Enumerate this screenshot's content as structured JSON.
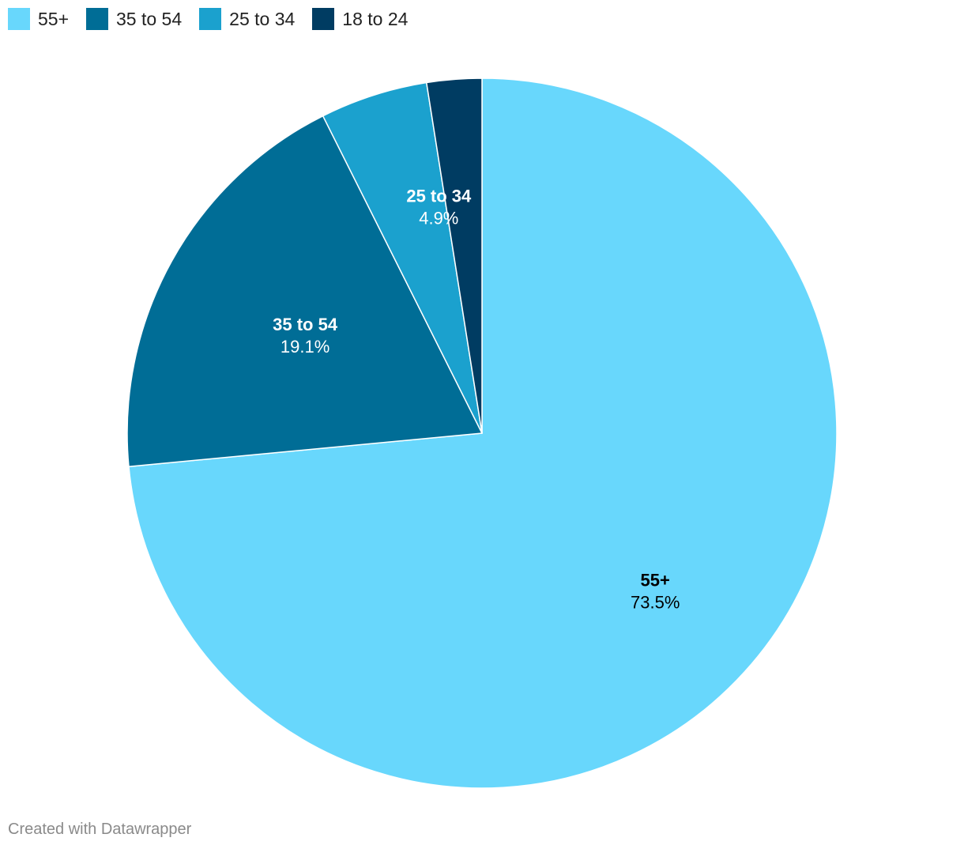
{
  "chart_data": {
    "type": "pie",
    "categories": [
      "55+",
      "35 to 54",
      "25 to 34",
      "18 to 24"
    ],
    "values": [
      73.5,
      19.1,
      4.9,
      2.5
    ],
    "value_labels": [
      "73.5%",
      "19.1%",
      "4.9%",
      ""
    ],
    "colors": [
      "#68d7fc",
      "#006d96",
      "#1ba1ce",
      "#003c62"
    ],
    "label_colors": [
      "#000000",
      "#ffffff",
      "#ffffff",
      "#ffffff"
    ],
    "legend": "top-left",
    "start": "12 o'clock",
    "direction": "clockwise"
  },
  "footer": {
    "credit": "Created with Datawrapper"
  }
}
